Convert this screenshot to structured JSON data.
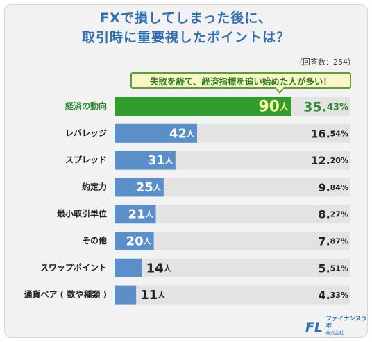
{
  "title_line1": "FXで損してしまった後に、",
  "title_line2": "取引時に重要視したポイントは？",
  "respondents": "（回答数：254）",
  "callout": "失敗を経て、経済指標を追い始めた人が多い！",
  "count_suffix": "人",
  "colors": {
    "highlight_bar": "#2f9e2f",
    "highlight_text": "#2e8b2e",
    "bar": "#5b8fc9",
    "track": "#e3e3e3",
    "title": "#2f6fb3"
  },
  "logo": {
    "name": "ファイナンスラボ",
    "sub": "株式会社",
    "mark": "FL"
  },
  "chart_data": {
    "type": "bar",
    "orientation": "horizontal",
    "categories": [
      "経済の動向",
      "レバレッジ",
      "スプレッド",
      "約定力",
      "最小取引単位",
      "その他",
      "スワップポイント",
      "通貨ペア ( 数や種類 )"
    ],
    "counts": [
      90,
      42,
      31,
      25,
      21,
      20,
      14,
      11
    ],
    "percent_labels": [
      "35.43%",
      "16.54%",
      "12.20%",
      "9.84%",
      "8.27%",
      "7.87%",
      "5.51%",
      "4.33%"
    ],
    "percents": [
      35.43,
      16.54,
      12.2,
      9.84,
      8.27,
      7.87,
      5.51,
      4.33
    ],
    "highlight_index": 0,
    "max": 90
  }
}
